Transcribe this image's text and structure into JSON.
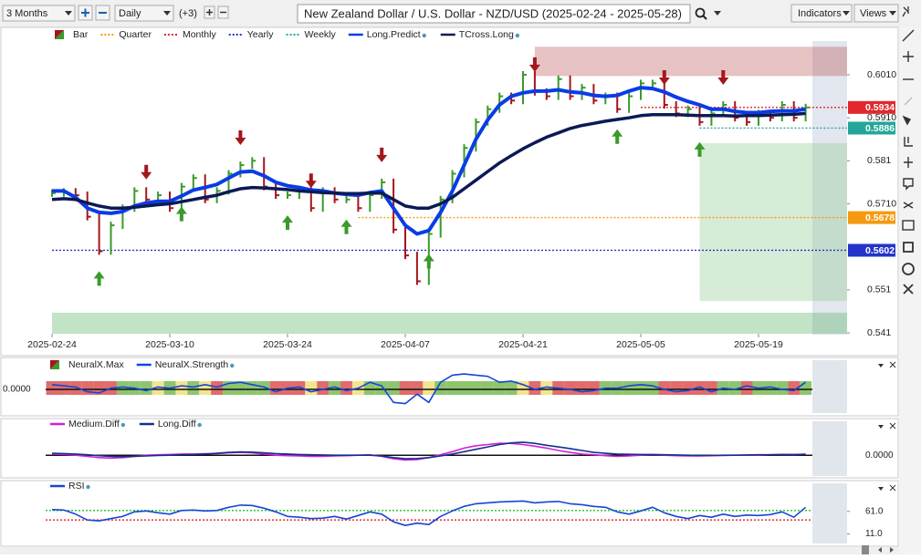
{
  "toolbar": {
    "range": "3 Months",
    "interval": "Daily",
    "offset": "(+3)",
    "title": "New Zealand Dollar / U.S. Dollar - NZD/USD (2025-02-24 - 2025-05-28)",
    "indicators": "Indicators",
    "views": "Views"
  },
  "chart_data": [
    {
      "type": "price",
      "categories": [
        "2025-02-24",
        null,
        null,
        null,
        null,
        null,
        null,
        null,
        null,
        null,
        "2025-03-10",
        null,
        null,
        null,
        null,
        null,
        null,
        null,
        null,
        null,
        "2025-03-24",
        null,
        null,
        null,
        null,
        null,
        null,
        null,
        null,
        null,
        "2025-04-07",
        null,
        null,
        null,
        null,
        null,
        null,
        null,
        null,
        null,
        "2025-04-21",
        null,
        null,
        null,
        null,
        null,
        null,
        null,
        null,
        null,
        "2025-05-05",
        null,
        null,
        null,
        null,
        null,
        null,
        null,
        null,
        null,
        "2025-05-19",
        null,
        null,
        null,
        null
      ],
      "bars": {
        "name": "Bar",
        "up_color": "#3a9a2a",
        "down_color": "#a3171c",
        "values": [
          0.5735,
          0.5738,
          0.573,
          0.568,
          0.56,
          0.566,
          0.57,
          0.574,
          0.572,
          0.573,
          0.57,
          0.575,
          0.577,
          0.572,
          0.574,
          0.578,
          0.58,
          0.581,
          0.575,
          0.573,
          0.573,
          0.574,
          0.57,
          0.574,
          0.572,
          0.572,
          0.57,
          0.573,
          0.576,
          0.565,
          0.559,
          0.553,
          0.564,
          0.572,
          0.578,
          0.584,
          0.59,
          0.593,
          0.596,
          0.595,
          0.601,
          0.597,
          0.596,
          0.6,
          0.596,
          0.598,
          0.595,
          0.596,
          0.593,
          0.596,
          0.599,
          0.599,
          0.594,
          0.592,
          0.593,
          0.59,
          0.592,
          0.594,
          0.591,
          0.59,
          0.592,
          0.591,
          0.594,
          0.591,
          0.5934
        ]
      },
      "series": [
        {
          "name": "Long.Predict",
          "color": "#0a3ce6",
          "width": 4,
          "values": [
            0.574,
            0.574,
            0.5725,
            0.57,
            0.569,
            0.5688,
            0.5692,
            0.5705,
            0.5712,
            0.5716,
            0.5716,
            0.5728,
            0.5742,
            0.5748,
            0.5755,
            0.577,
            0.5784,
            0.5786,
            0.5775,
            0.576,
            0.5752,
            0.5748,
            0.5742,
            0.574,
            0.5735,
            0.5732,
            0.573,
            0.5736,
            0.574,
            0.57,
            0.566,
            0.564,
            0.5648,
            0.569,
            0.574,
            0.58,
            0.586,
            0.5905,
            0.594,
            0.596,
            0.5968,
            0.5972,
            0.5972,
            0.5975,
            0.597,
            0.5968,
            0.5962,
            0.596,
            0.5962,
            0.5972,
            0.598,
            0.5978,
            0.597,
            0.5958,
            0.5948,
            0.594,
            0.593,
            0.593,
            0.5925,
            0.5922,
            0.5922,
            0.5925,
            0.5926,
            0.5926,
            0.593
          ]
        },
        {
          "name": "TCross.Long",
          "color": "#0b1a55",
          "width": 3.5,
          "values": [
            0.572,
            0.5722,
            0.572,
            0.5712,
            0.5705,
            0.57,
            0.57,
            0.5702,
            0.5705,
            0.5708,
            0.571,
            0.5715,
            0.572,
            0.5725,
            0.573,
            0.5738,
            0.5745,
            0.5748,
            0.5747,
            0.5745,
            0.5743,
            0.574,
            0.5738,
            0.5736,
            0.5735,
            0.5734,
            0.5734,
            0.5735,
            0.5735,
            0.572,
            0.5705,
            0.57,
            0.57,
            0.571,
            0.5725,
            0.5745,
            0.5765,
            0.5785,
            0.5805,
            0.5822,
            0.5838,
            0.5852,
            0.5865,
            0.5875,
            0.5885,
            0.5892,
            0.5897,
            0.5902,
            0.5906,
            0.591,
            0.5915,
            0.5917,
            0.5917,
            0.5917,
            0.5916,
            0.5915,
            0.5915,
            0.5915,
            0.5914,
            0.5915,
            0.5915,
            0.5916,
            0.5917,
            0.5918,
            0.592
          ]
        }
      ],
      "levels": [
        {
          "name": "Quarter",
          "value": 0.5678,
          "color": "#f59a10",
          "from": 26
        },
        {
          "name": "Monthly",
          "value": 0.5934,
          "color": "#e0282e",
          "from": 50
        },
        {
          "name": "Yearly",
          "value": 0.5602,
          "color": "#2433c8",
          "from": 0
        },
        {
          "name": "Weekly",
          "value": 0.5886,
          "color": "#23a69a",
          "from": 55
        }
      ],
      "zones": [
        {
          "from": 41,
          "y": [
            0.6007,
            0.6075
          ],
          "color": "#b85050"
        },
        {
          "from": 55,
          "y": [
            0.5484,
            0.5851
          ],
          "color": "#8cc88c"
        },
        {
          "from": 0,
          "y": [
            0.5408,
            0.5457
          ],
          "color": "#4fae5a"
        }
      ],
      "arrows_up": [
        4,
        11,
        20,
        25,
        32,
        48,
        55
      ],
      "arrows_down": [
        8,
        16,
        22,
        28,
        41,
        52,
        57
      ],
      "ylim": [
        0.5408,
        0.6082
      ],
      "yticks": [
        {
          "value": 0.601,
          "label": "0.6010"
        },
        {
          "value": 0.591,
          "label": "0.5910"
        },
        0.581,
        {
          "value": 0.571,
          "label": "0.5710"
        },
        0.551,
        0.541
      ]
    },
    {
      "type": "oscillator",
      "series": [
        {
          "name": "NeuralX.Max",
          "colors": [
            "#e06c6c",
            "#e06c6c",
            "#e06c6c",
            "#e06c6c",
            "#e06c6c",
            "#e06c6c",
            "#8cc56e",
            "#8cc56e",
            "#8cc56e",
            "#f3e48f",
            "#8cc56e",
            "#f3e48f",
            "#8cc56e",
            "#f3e48f",
            "#e06c6c",
            "#8cc56e",
            "#8cc56e",
            "#8cc56e",
            "#8cc56e",
            "#e06c6c",
            "#e06c6c",
            "#e06c6c",
            "#f3e48f",
            "#e06c6c",
            "#8cc56e",
            "#e06c6c",
            "#f3e48f",
            "#8cc56e",
            "#8cc56e",
            "#8cc56e",
            "#e06c6c",
            "#e06c6c",
            "#f3e48f",
            "#8cc56e",
            "#8cc56e",
            "#8cc56e",
            "#8cc56e",
            "#8cc56e",
            "#8cc56e",
            "#8cc56e",
            "#f3e48f",
            "#e06c6c",
            "#f3e48f",
            "#e06c6c",
            "#e06c6c",
            "#e06c6c",
            "#e06c6c",
            "#8cc56e",
            "#8cc56e",
            "#8cc56e",
            "#8cc56e",
            "#8cc56e",
            "#e06c6c",
            "#e06c6c",
            "#e06c6c",
            "#e06c6c",
            "#e06c6c",
            "#8cc56e",
            "#8cc56e",
            "#e06c6c",
            "#8cc56e",
            "#8cc56e",
            "#8cc56e",
            "#e06c6c",
            "#8cc56e"
          ]
        },
        {
          "name": "NeuralX.Strength",
          "color": "#1446d8",
          "values": [
            0.2,
            0.15,
            0.1,
            -0.1,
            -0.15,
            0.05,
            0.1,
            0.05,
            -0.05,
            0.1,
            0.05,
            0.15,
            0.1,
            0.2,
            0.1,
            0.25,
            0.3,
            0.2,
            0.1,
            -0.1,
            0.05,
            0.1,
            -0.1,
            0,
            0.1,
            -0.05,
            0.05,
            0.3,
            0.15,
            -0.55,
            -0.6,
            -0.2,
            -0.55,
            0.3,
            0.6,
            0.65,
            0.6,
            0.55,
            0.3,
            0.35,
            0.2,
            0,
            0.1,
            0.05,
            0,
            -0.1,
            -0.05,
            0.05,
            0.05,
            0.15,
            0.2,
            0.15,
            0,
            -0.1,
            -0.05,
            0.1,
            -0.1,
            0.05,
            0,
            0.15,
            0.05,
            0.1,
            0,
            -0.05,
            0.3
          ]
        }
      ],
      "ylim": [
        -1,
        1
      ],
      "yticks": [
        {
          "value": 0,
          "label": "0.0000"
        }
      ]
    },
    {
      "type": "line",
      "series": [
        {
          "name": "Medium.Diff",
          "color": "#d020d8",
          "values": [
            0.05,
            0.03,
            0,
            -0.05,
            -0.1,
            -0.12,
            -0.1,
            -0.05,
            0,
            0.02,
            0.03,
            0.05,
            0.05,
            0.06,
            0.07,
            0.1,
            0.12,
            0.1,
            0.05,
            0,
            -0.02,
            -0.03,
            -0.05,
            -0.05,
            -0.03,
            -0.02,
            0,
            0.02,
            -0.05,
            -0.15,
            -0.2,
            -0.18,
            -0.1,
            0.02,
            0.15,
            0.3,
            0.4,
            0.45,
            0.5,
            0.5,
            0.45,
            0.38,
            0.3,
            0.2,
            0.12,
            0.05,
            0.02,
            -0.02,
            -0.05,
            -0.03,
            0,
            0.02,
            0,
            -0.02,
            -0.03,
            -0.03,
            -0.02,
            -0.01,
            0,
            0,
            0,
            0.02,
            0.03,
            0.02,
            0.05
          ]
        },
        {
          "name": "Long.Diff",
          "color": "#14308c",
          "values": [
            0.08,
            0.07,
            0.05,
            0.02,
            -0.02,
            -0.05,
            -0.06,
            -0.05,
            -0.03,
            -0.01,
            0,
            0.02,
            0.03,
            0.05,
            0.08,
            0.12,
            0.14,
            0.13,
            0.1,
            0.07,
            0.05,
            0.03,
            0.02,
            0.01,
            0,
            0,
            0,
            0,
            -0.03,
            -0.1,
            -0.15,
            -0.14,
            -0.1,
            -0.03,
            0.05,
            0.15,
            0.25,
            0.35,
            0.45,
            0.52,
            0.55,
            0.5,
            0.42,
            0.35,
            0.28,
            0.2,
            0.12,
            0.08,
            0.05,
            0.04,
            0.03,
            0.03,
            0.02,
            0.01,
            0,
            -0.01,
            -0.01,
            0,
            0,
            0.01,
            0.02,
            0.02,
            0.03,
            0.03,
            0.04
          ]
        }
      ],
      "ylim": [
        -0.8,
        1.2
      ],
      "yticks": [
        {
          "value": 0,
          "label": "0.0000"
        }
      ]
    },
    {
      "type": "line",
      "series": [
        {
          "name": "RSI",
          "color": "#1446d8",
          "values": [
            65,
            64,
            55,
            42,
            40,
            45,
            50,
            60,
            62,
            58,
            55,
            63,
            64,
            62,
            63,
            70,
            75,
            74,
            68,
            60,
            50,
            48,
            45,
            46,
            50,
            44,
            52,
            60,
            55,
            38,
            30,
            35,
            32,
            50,
            62,
            72,
            78,
            80,
            82,
            83,
            84,
            80,
            82,
            83,
            78,
            76,
            72,
            70,
            60,
            55,
            62,
            70,
            58,
            50,
            45,
            52,
            48,
            55,
            50,
            53,
            52,
            54,
            60,
            48,
            70
          ]
        }
      ],
      "levels": [
        {
          "value": 63,
          "color": "#22c022"
        },
        {
          "value": 42,
          "color": "#e02020"
        }
      ],
      "ylim": [
        -12,
        111
      ],
      "yticks": [
        {
          "value": 61,
          "label": "61.0"
        },
        {
          "value": 11,
          "label": "11.0"
        }
      ]
    }
  ]
}
